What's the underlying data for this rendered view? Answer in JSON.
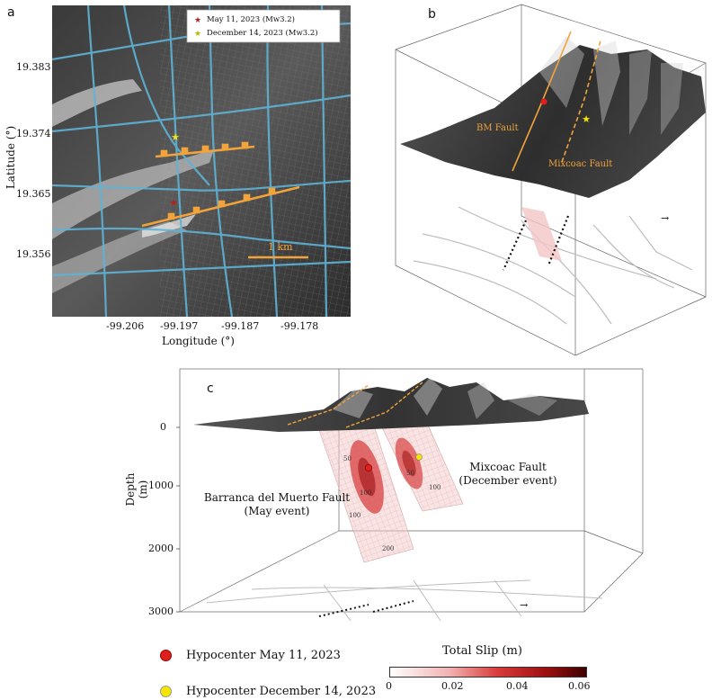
{
  "panel_a": {
    "letter": "a",
    "ylabel": "Latitude (°)",
    "xlabel": "Longitude (°)",
    "yticks": [
      "19.383",
      "19.374",
      "19.365",
      "19.356"
    ],
    "xticks": [
      "-99.206",
      "-99.197",
      "-99.187",
      "-99.178"
    ],
    "legend": [
      {
        "label": "May 11, 2023 (Mw3.2)",
        "color": "#b22222"
      },
      {
        "label": "December 14, 2023 (Mw3.2)",
        "color": "#f5e11a"
      }
    ],
    "scale_label": "1 km",
    "colors": {
      "roads": "#5fb3d6",
      "fault": "#f2a33a"
    }
  },
  "panel_b": {
    "letter": "b",
    "fault_labels": [
      "BM Fault",
      "Mixcoac Fault"
    ]
  },
  "panel_c": {
    "letter": "c",
    "ylabel": "Depth (m)",
    "yticks": [
      "0",
      "1000",
      "2000",
      "3000"
    ],
    "fault_labels": [
      {
        "line1": "Barranca del Muerto Fault",
        "line2": "(May event)"
      },
      {
        "line1": "Mixcoac Fault",
        "line2": "(December event)"
      }
    ],
    "contour_labels": [
      "50",
      "100",
      "50",
      "100",
      "100",
      "200"
    ]
  },
  "legend_bottom": {
    "items": [
      {
        "label": "Hypocenter May 11, 2023",
        "color": "#e01e1e"
      },
      {
        "label": "Hypocenter December 14, 2023",
        "color": "#f5e600"
      }
    ]
  },
  "colorbar": {
    "title": "Total Slip (m)",
    "ticks": [
      "0",
      "0.02",
      "0.04",
      "0.06"
    ],
    "colors": [
      "#ffffff",
      "#f2b3b3",
      "#d83a3a",
      "#9c0f0f",
      "#3c0000"
    ]
  }
}
